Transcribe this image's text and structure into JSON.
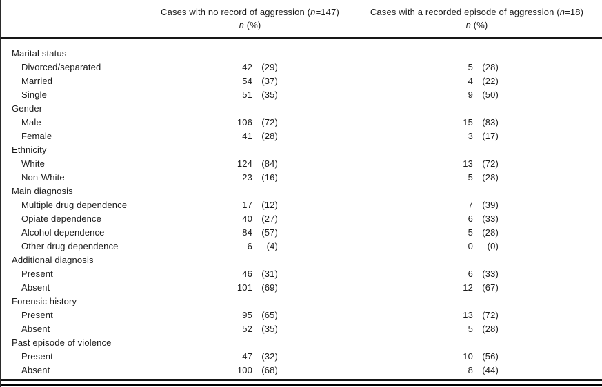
{
  "table": {
    "columns": {
      "no_record": {
        "title_prefix": "Cases with no record of aggression (",
        "title_n": "n",
        "title_suffix": "=147)",
        "sub_n": "n",
        "sub_rest": " (%)"
      },
      "aggression": {
        "title_prefix": "Cases with a recorded episode of aggression (",
        "title_n": "n",
        "title_suffix": "=18)",
        "sub_n": "n",
        "sub_rest": " (%)"
      }
    },
    "groups": [
      {
        "label": "Marital status",
        "rows": [
          {
            "label": "Divorced/separated",
            "no_record_n": "42",
            "no_record_pct": "(29)",
            "aggression_n": "5",
            "aggression_pct": "(28)"
          },
          {
            "label": "Married",
            "no_record_n": "54",
            "no_record_pct": "(37)",
            "aggression_n": "4",
            "aggression_pct": "(22)"
          },
          {
            "label": "Single",
            "no_record_n": "51",
            "no_record_pct": "(35)",
            "aggression_n": "9",
            "aggression_pct": "(50)"
          }
        ]
      },
      {
        "label": "Gender",
        "rows": [
          {
            "label": "Male",
            "no_record_n": "106",
            "no_record_pct": "(72)",
            "aggression_n": "15",
            "aggression_pct": "(83)"
          },
          {
            "label": "Female",
            "no_record_n": "41",
            "no_record_pct": "(28)",
            "aggression_n": "3",
            "aggression_pct": "(17)"
          }
        ]
      },
      {
        "label": "Ethnicity",
        "rows": [
          {
            "label": "White",
            "no_record_n": "124",
            "no_record_pct": "(84)",
            "aggression_n": "13",
            "aggression_pct": "(72)"
          },
          {
            "label": "Non-White",
            "no_record_n": "23",
            "no_record_pct": "(16)",
            "aggression_n": "5",
            "aggression_pct": "(28)"
          }
        ]
      },
      {
        "label": "Main diagnosis",
        "rows": [
          {
            "label": "Multiple drug dependence",
            "no_record_n": "17",
            "no_record_pct": "(12)",
            "aggression_n": "7",
            "aggression_pct": "(39)"
          },
          {
            "label": "Opiate dependence",
            "no_record_n": "40",
            "no_record_pct": "(27)",
            "aggression_n": "6",
            "aggression_pct": "(33)"
          },
          {
            "label": "Alcohol dependence",
            "no_record_n": "84",
            "no_record_pct": "(57)",
            "aggression_n": "5",
            "aggression_pct": "(28)"
          },
          {
            "label": "Other drug dependence",
            "no_record_n": "6",
            "no_record_pct": "(4)",
            "aggression_n": "0",
            "aggression_pct": "(0)"
          }
        ]
      },
      {
        "label": "Additional diagnosis",
        "rows": [
          {
            "label": "Present",
            "no_record_n": "46",
            "no_record_pct": "(31)",
            "aggression_n": "6",
            "aggression_pct": "(33)"
          },
          {
            "label": "Absent",
            "no_record_n": "101",
            "no_record_pct": "(69)",
            "aggression_n": "12",
            "aggression_pct": "(67)"
          }
        ]
      },
      {
        "label": "Forensic history",
        "rows": [
          {
            "label": "Present",
            "no_record_n": "95",
            "no_record_pct": "(65)",
            "aggression_n": "13",
            "aggression_pct": "(72)"
          },
          {
            "label": "Absent",
            "no_record_n": "52",
            "no_record_pct": "(35)",
            "aggression_n": "5",
            "aggression_pct": "(28)"
          }
        ]
      },
      {
        "label": "Past episode of violence",
        "rows": [
          {
            "label": "Present",
            "no_record_n": "47",
            "no_record_pct": "(32)",
            "aggression_n": "10",
            "aggression_pct": "(56)"
          },
          {
            "label": "Absent",
            "no_record_n": "100",
            "no_record_pct": "(68)",
            "aggression_n": "8",
            "aggression_pct": "(44)"
          }
        ]
      }
    ]
  }
}
